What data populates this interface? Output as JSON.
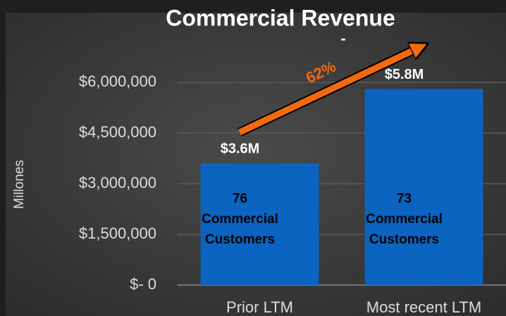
{
  "chart_data": {
    "type": "bar",
    "title": "Commercial Revenue",
    "subtitle": "-",
    "y_label": "Millones",
    "categories": [
      "Prior LTM",
      "Most recent LTM"
    ],
    "values": [
      3600000,
      5800000
    ],
    "value_labels": [
      "$3.6M",
      "$5.8M"
    ],
    "color": "#0a64c0",
    "bar_notes": [
      [
        "76",
        "Commercial",
        "Customers"
      ],
      [
        "73",
        "Commercial",
        "Customers"
      ]
    ],
    "annotations": [
      {
        "text": "62%"
      }
    ],
    "ylim": [
      0,
      8000000
    ],
    "yticks": [
      {
        "value": 0,
        "label": "$- 0"
      },
      {
        "value": 1500000,
        "label": "$1,500,000"
      },
      {
        "value": 3000000,
        "label": "$3,000,000"
      },
      {
        "value": 4500000,
        "label": "$4,500,000"
      },
      {
        "value": 6000000,
        "label": "$6,000,000"
      }
    ],
    "grid": true
  }
}
